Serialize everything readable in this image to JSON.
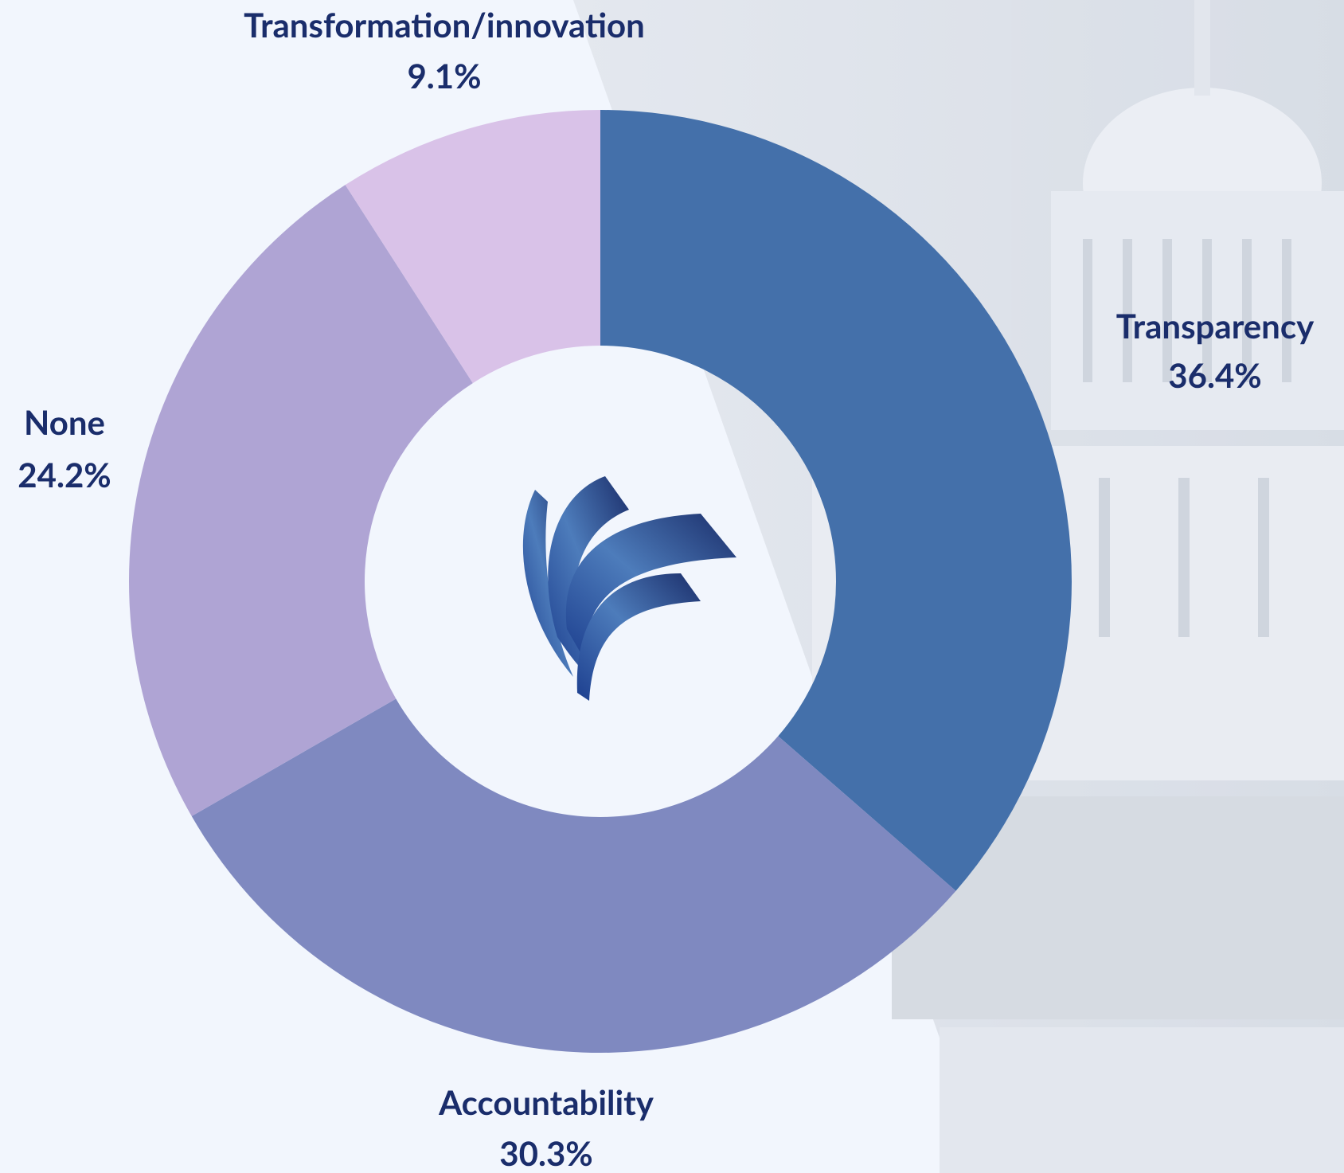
{
  "chart_data": {
    "type": "donut",
    "categories": [
      "Transparency",
      "Accountability",
      "None",
      "Transformation/innovation"
    ],
    "values": [
      36.4,
      30.3,
      24.2,
      9.1
    ],
    "value_labels": [
      "36.4%",
      "30.3%",
      "24.2%",
      "9.1%"
    ],
    "colors": [
      "#4470aa",
      "#7f89c0",
      "#afa4d4",
      "#d9c2e8"
    ]
  }
}
